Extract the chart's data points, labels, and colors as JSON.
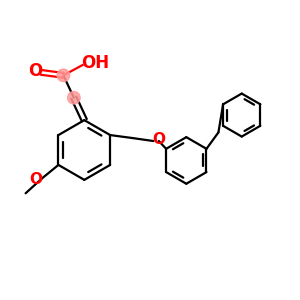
{
  "background_color": "#ffffff",
  "bond_color": "#000000",
  "oxygen_color": "#ff0000",
  "highlight_color": "#ff9999",
  "line_width": 1.6,
  "figsize": [
    3.0,
    3.0
  ],
  "dpi": 100,
  "xlim": [
    0,
    10
  ],
  "ylim": [
    0,
    10
  ]
}
